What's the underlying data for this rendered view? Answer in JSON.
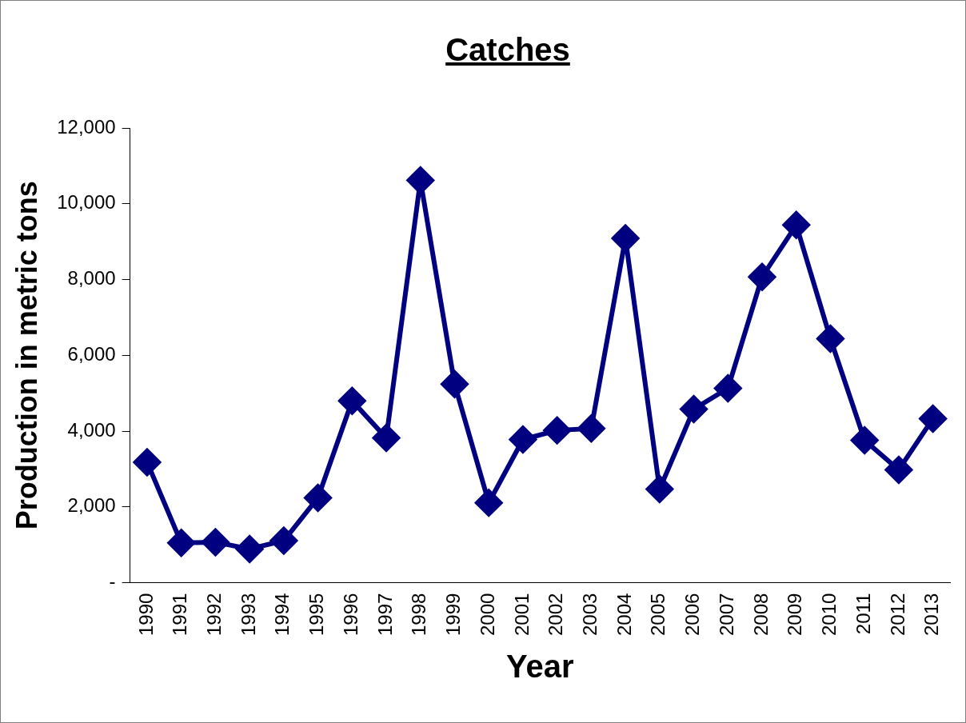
{
  "chart_data": {
    "type": "line",
    "title": "Catches",
    "xlabel": "Year",
    "ylabel": "Production in metric tons",
    "categories": [
      "1990",
      "1991",
      "1992",
      "1993",
      "1994",
      "1995",
      "1996",
      "1997",
      "1998",
      "1999",
      "2000",
      "2001",
      "2002",
      "2003",
      "2004",
      "2005",
      "2006",
      "2007",
      "2008",
      "2009",
      "2010",
      "2011",
      "2012",
      "2013"
    ],
    "series": [
      {
        "color": "#000080",
        "values": [
          3180,
          1050,
          1070,
          890,
          1110,
          2240,
          4800,
          3820,
          10620,
          5240,
          2110,
          3780,
          4020,
          4070,
          9090,
          2470,
          4580,
          5130,
          8070,
          9440,
          6440,
          3760,
          2980,
          4330
        ]
      }
    ],
    "ylim": [
      0,
      12000
    ],
    "yticks": [
      {
        "value": 0,
        "label": "-"
      },
      {
        "value": 2000,
        "label": "2,000"
      },
      {
        "value": 4000,
        "label": "4,000"
      },
      {
        "value": 6000,
        "label": "6,000"
      },
      {
        "value": 8000,
        "label": "8,000"
      },
      {
        "value": 10000,
        "label": "10,000"
      },
      {
        "value": 12000,
        "label": "12,000"
      }
    ],
    "grid": false,
    "legend": false,
    "marker": "diamond",
    "line_style": "solid"
  }
}
